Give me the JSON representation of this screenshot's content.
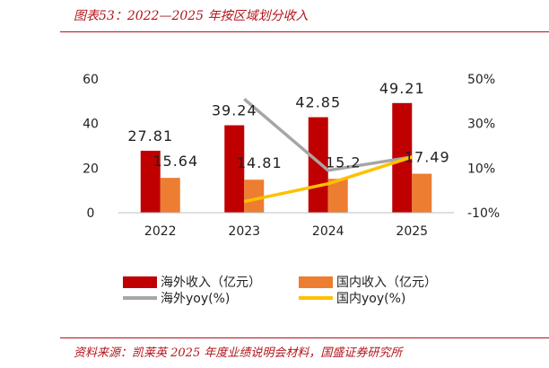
{
  "header": {
    "title": "图表53：2022—2025 年按区域划分收入"
  },
  "footer": {
    "source": "资料来源：凯莱英 2025 年度业绩说明会材料，国盛证券研究所"
  },
  "colors": {
    "overseas_bar": "#c00000",
    "domestic_bar": "#ed7d31",
    "overseas_yoy": "#a6a6a6",
    "domestic_yoy": "#ffc000",
    "accent": "#b3131b"
  },
  "chart_data": {
    "type": "bar",
    "categories": [
      "2022",
      "2023",
      "2024",
      "2025"
    ],
    "series": [
      {
        "name": "海外收入（亿元）",
        "type": "bar",
        "axis": "left",
        "values": [
          27.81,
          39.24,
          42.85,
          49.21
        ],
        "labels": [
          "27.81",
          "39.24",
          "42.85",
          "49.21"
        ]
      },
      {
        "name": "国内收入（亿元）",
        "type": "bar",
        "axis": "left",
        "values": [
          15.64,
          14.81,
          15.2,
          17.49
        ],
        "labels": [
          "15.64",
          "14.81",
          "15.2",
          "17.49"
        ]
      },
      {
        "name": "海外yoy(%)",
        "type": "line",
        "axis": "right",
        "x": [
          "2023",
          "2024",
          "2025"
        ],
        "values": [
          41,
          9,
          15
        ]
      },
      {
        "name": "国内yoy(%)",
        "type": "line",
        "axis": "right",
        "x": [
          "2023",
          "2024",
          "2025"
        ],
        "values": [
          -5,
          3,
          15
        ]
      }
    ],
    "y_left": {
      "range": [
        0,
        60
      ],
      "ticks": [
        "0",
        "20",
        "40",
        "60"
      ]
    },
    "y_right": {
      "range": [
        -10,
        50
      ],
      "ticks": [
        "-10%",
        "10%",
        "30%",
        "50%"
      ]
    },
    "grid": false,
    "legend": "bottom"
  }
}
